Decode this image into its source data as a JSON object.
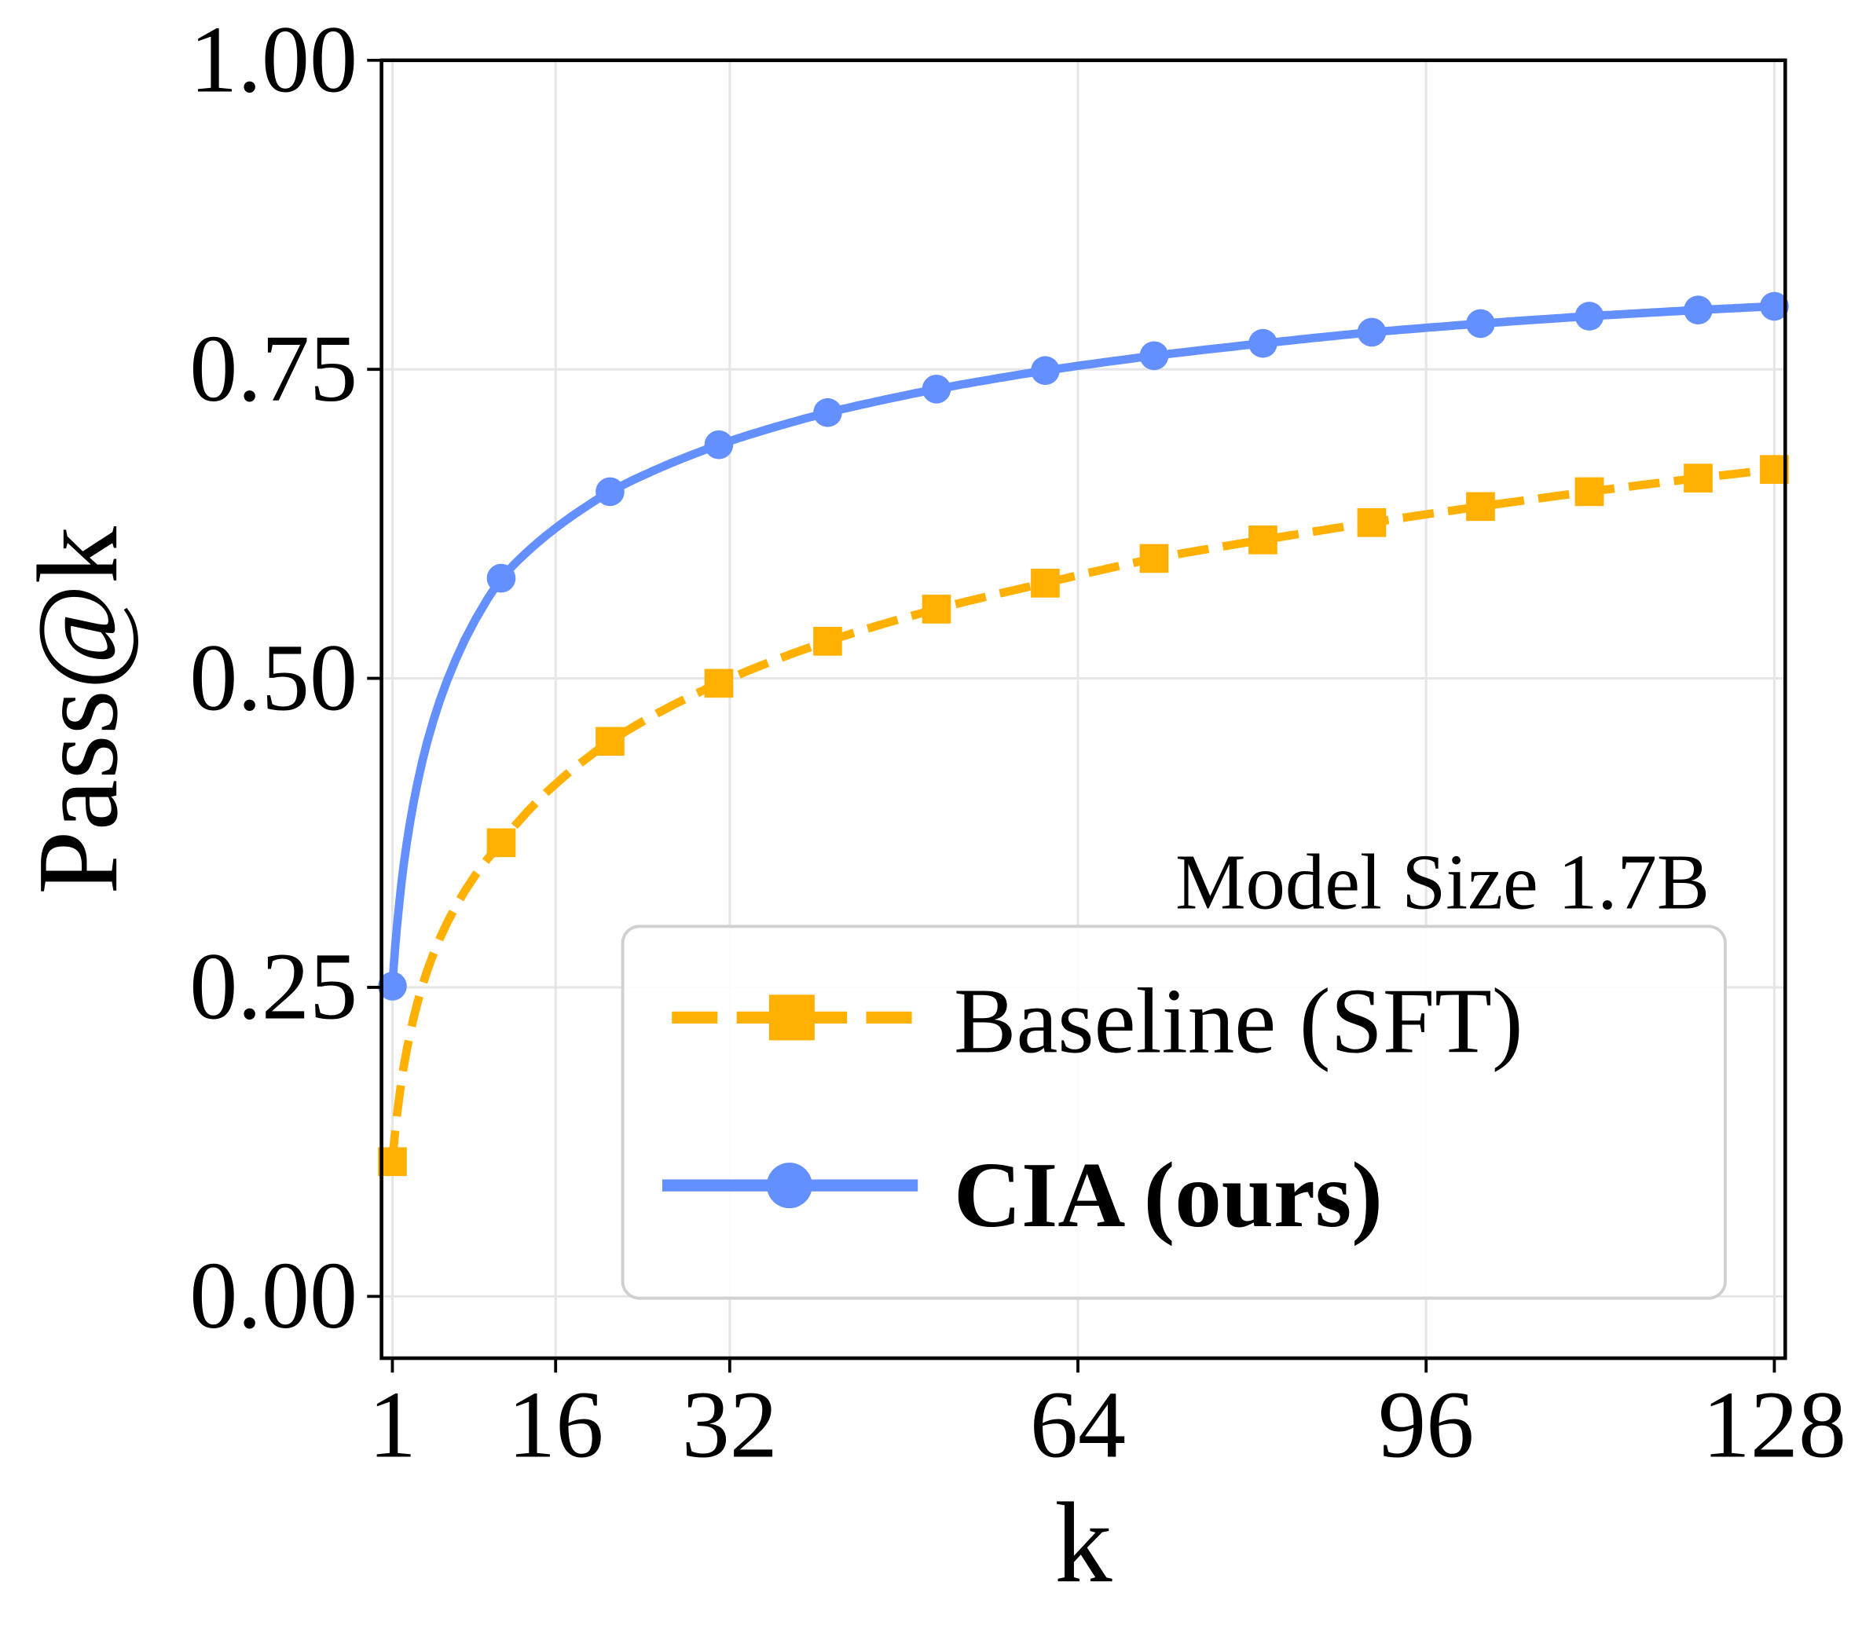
{
  "chart_data": {
    "type": "line",
    "title": "",
    "xlabel": "k",
    "ylabel": "Pass@k",
    "xlim": [
      0,
      129
    ],
    "ylim": [
      -0.05,
      1.0
    ],
    "x_ticks": [
      1,
      16,
      32,
      64,
      96,
      128
    ],
    "x_tick_labels": [
      "1",
      "16",
      "32",
      "64",
      "96",
      "128"
    ],
    "y_ticks": [
      0,
      0.25,
      0.5,
      0.75,
      1.0
    ],
    "y_tick_labels": [
      "0.00",
      "0.25",
      "0.50",
      "0.75",
      "1.00"
    ],
    "grid": true,
    "annotation": "Model Size 1.7B",
    "legend_placement": "lower-right",
    "x": [
      1,
      11,
      21,
      31,
      41,
      51,
      61,
      71,
      81,
      91,
      101,
      111,
      121,
      128
    ],
    "series": [
      {
        "name": "Baseline (SFT)",
        "color": "#FFB000",
        "line_style": "dashed",
        "marker": "square",
        "values": [
          0.109,
          0.367,
          0.449,
          0.496,
          0.53,
          0.556,
          0.577,
          0.597,
          0.612,
          0.626,
          0.639,
          0.651,
          0.662,
          0.669
        ]
      },
      {
        "name": "CIA (ours)",
        "color": "#648FFF",
        "line_style": "solid",
        "marker": "circle",
        "bold_label": true,
        "values": [
          0.251,
          0.581,
          0.651,
          0.689,
          0.715,
          0.734,
          0.749,
          0.761,
          0.771,
          0.78,
          0.787,
          0.793,
          0.798,
          0.801
        ]
      }
    ]
  }
}
